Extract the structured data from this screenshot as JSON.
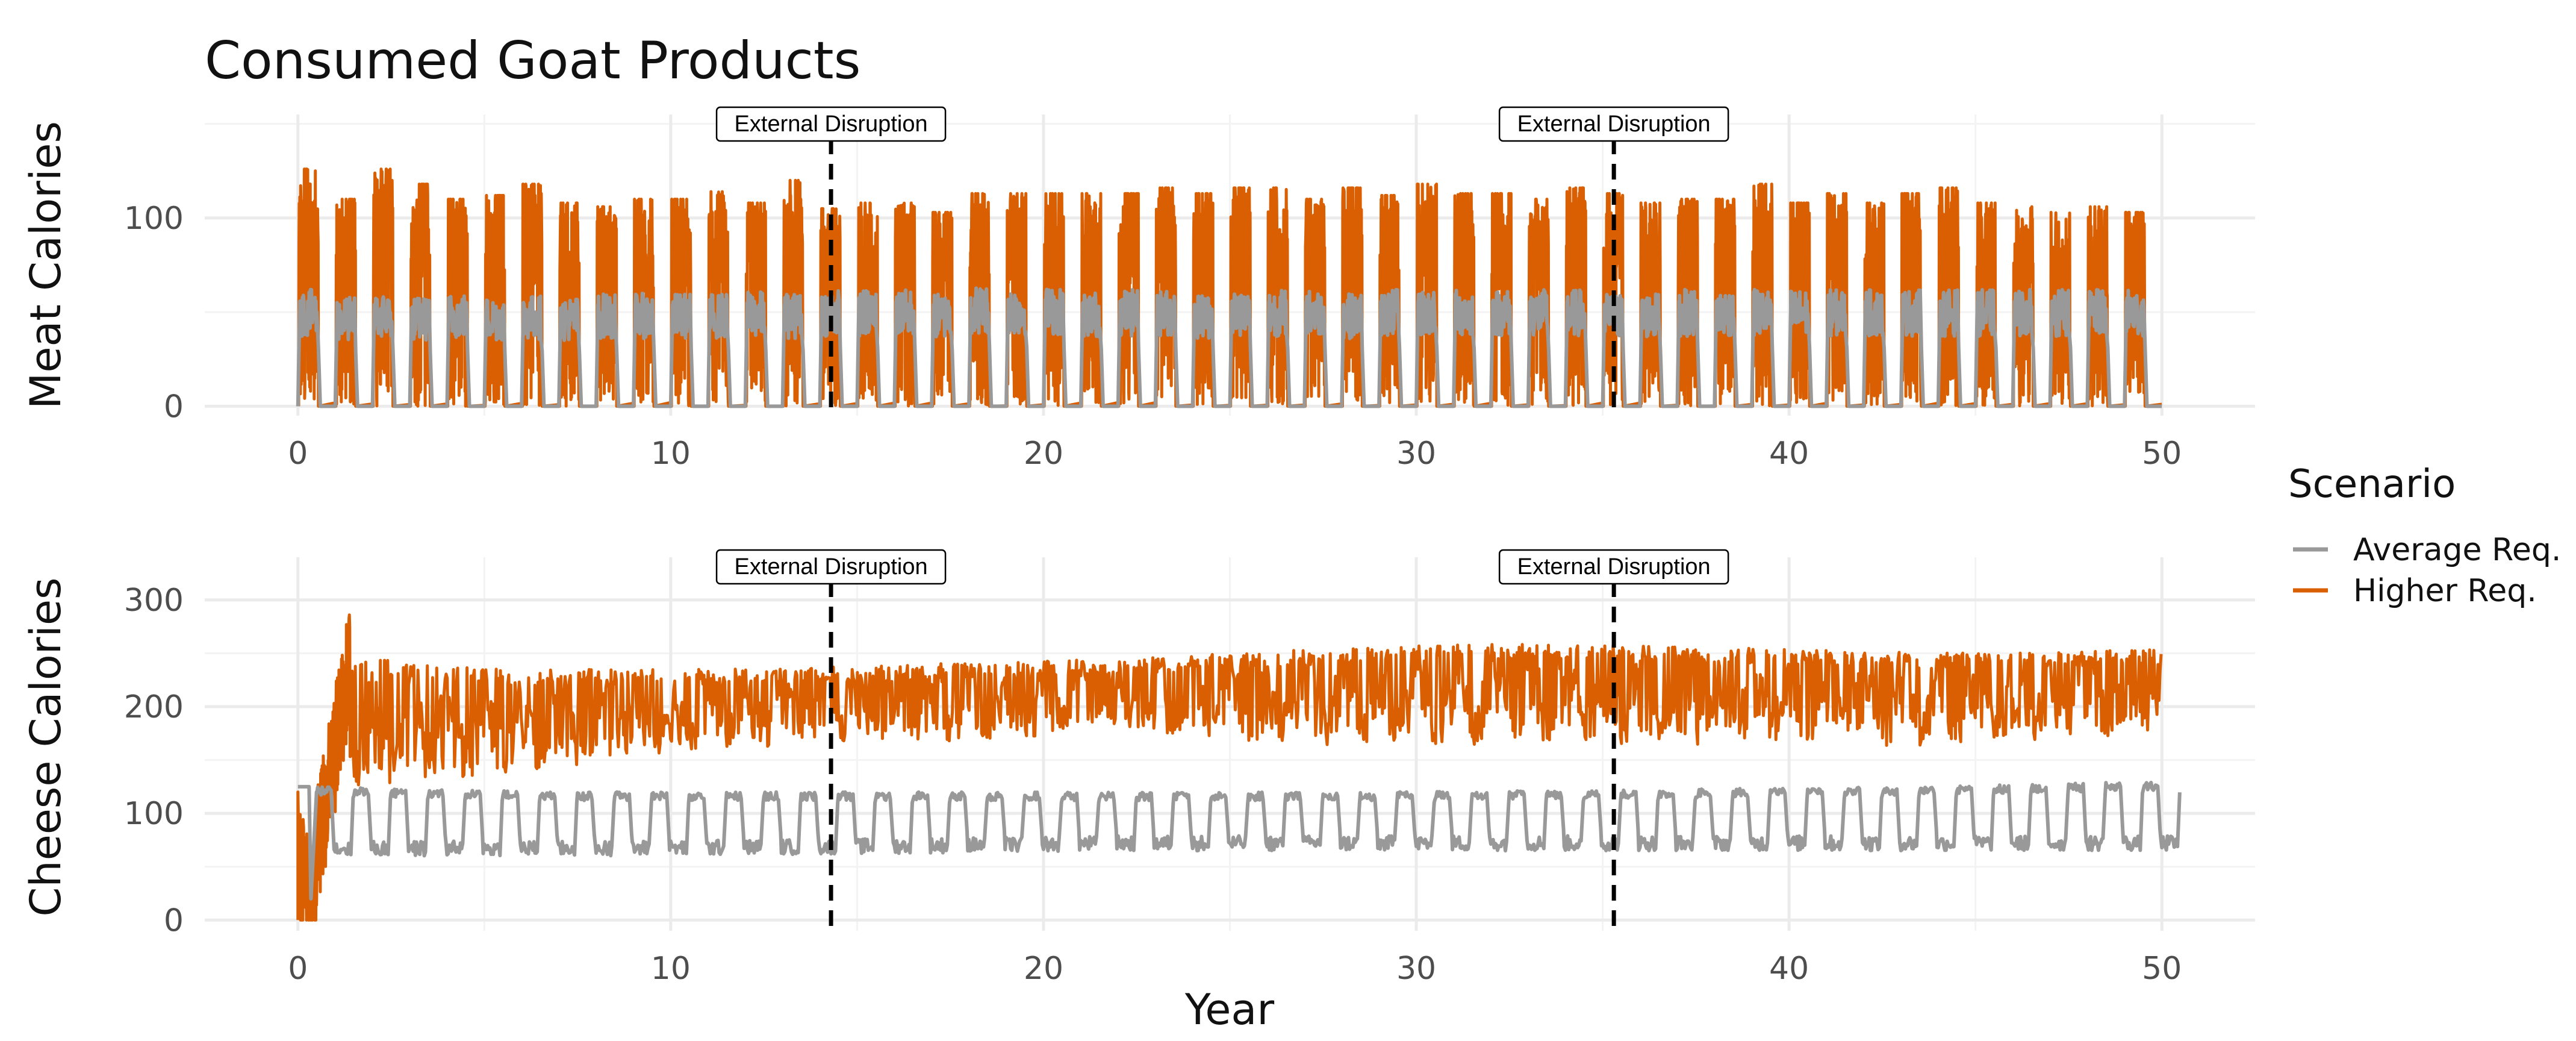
{
  "chart_data": [
    {
      "type": "line",
      "panel": "top",
      "title": "Consumed Goat Products",
      "xlabel": "",
      "ylabel": "Meat Calories",
      "xlim": [
        -2.5,
        52.5
      ],
      "ylim": [
        -5,
        155
      ],
      "x_ticks": [
        0,
        10,
        20,
        30,
        40,
        50
      ],
      "y_ticks": [
        0,
        100
      ],
      "annotations": [
        {
          "x": 14.3,
          "label": "External Disruption"
        },
        {
          "x": 35.3,
          "label": "External Disruption"
        }
      ],
      "series": [
        {
          "name": "Average Req.",
          "color": "#999999",
          "description": "seasonal pulses between 0 and about 60 calories",
          "peak_values": [
            62,
            58,
            60,
            58,
            60,
            58,
            59,
            58,
            60,
            60,
            60,
            60,
            61,
            60,
            62,
            62,
            62,
            60,
            64,
            63,
            63,
            61,
            62,
            62,
            60,
            62,
            62,
            62,
            60,
            62,
            62,
            62,
            62,
            62,
            62,
            60,
            60,
            62,
            62,
            62,
            62,
            62,
            62,
            62,
            62,
            62,
            62,
            62,
            62,
            62
          ]
        },
        {
          "name": "Higher Req.",
          "color": "#d95f02",
          "description": "seasonal pulses between 0 and about 100-125 calories",
          "peak_values": [
            126,
            110,
            126,
            118,
            110,
            112,
            118,
            108,
            106,
            110,
            110,
            114,
            108,
            120,
            105,
            108,
            108,
            103,
            113,
            113,
            113,
            113,
            113,
            116,
            113,
            116,
            116,
            110,
            116,
            112,
            118,
            113,
            113,
            110,
            116,
            113,
            108,
            110,
            110,
            118,
            108,
            113,
            108,
            113,
            116,
            108,
            106,
            103,
            106,
            103
          ]
        }
      ]
    },
    {
      "type": "line",
      "panel": "bottom",
      "xlabel": "Year",
      "ylabel": "Cheese Calories",
      "xlim": [
        -2.5,
        52.5
      ],
      "ylim": [
        -10,
        340
      ],
      "x_ticks": [
        0,
        10,
        20,
        30,
        40,
        50
      ],
      "y_ticks": [
        0,
        100,
        200,
        300
      ],
      "annotations": [
        {
          "x": 14.3,
          "label": "External Disruption"
        },
        {
          "x": 35.3,
          "label": "External Disruption"
        }
      ],
      "series": [
        {
          "name": "Average Req.",
          "color": "#999999",
          "description": "seasonal oscillation between about 60 and 125 calories",
          "high_level": [
            125,
            120,
            120,
            120,
            120,
            122,
            125,
            130
          ],
          "low_level": [
            60,
            60,
            62,
            65,
            65,
            65,
            65,
            65
          ]
        },
        {
          "name": "Higher Req.",
          "color": "#d95f02",
          "description": "rises from 0 to about 240 in year 1-2, then fluctuates between about 150 and 260",
          "upper_envelope": [
            250,
            235,
            235,
            240,
            245,
            255,
            260,
            255,
            250,
            255
          ],
          "lower_envelope": [
            100,
            120,
            150,
            155,
            160,
            150,
            150,
            150,
            150,
            165
          ]
        }
      ]
    }
  ],
  "legend": {
    "title": "Scenario",
    "items": [
      {
        "label": "Average Req.",
        "color": "#999999"
      },
      {
        "label": "Higher Req.",
        "color": "#d95f02"
      }
    ]
  }
}
